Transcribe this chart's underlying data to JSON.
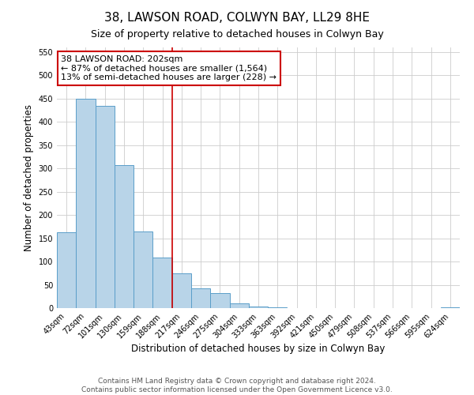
{
  "title": "38, LAWSON ROAD, COLWYN BAY, LL29 8HE",
  "subtitle": "Size of property relative to detached houses in Colwyn Bay",
  "xlabel": "Distribution of detached houses by size in Colwyn Bay",
  "ylabel": "Number of detached properties",
  "bar_labels": [
    "43sqm",
    "72sqm",
    "101sqm",
    "130sqm",
    "159sqm",
    "188sqm",
    "217sqm",
    "246sqm",
    "275sqm",
    "304sqm",
    "333sqm",
    "363sqm",
    "392sqm",
    "421sqm",
    "450sqm",
    "479sqm",
    "508sqm",
    "537sqm",
    "566sqm",
    "595sqm",
    "624sqm"
  ],
  "bar_values": [
    163,
    450,
    435,
    308,
    165,
    108,
    75,
    43,
    32,
    10,
    4,
    1,
    0,
    0,
    0,
    0,
    0,
    0,
    0,
    0,
    2
  ],
  "bar_color": "#b8d4e8",
  "bar_edge_color": "#5a9ec9",
  "vline_color": "#cc0000",
  "vline_index": 6,
  "annotation_line1": "38 LAWSON ROAD: 202sqm",
  "annotation_line2": "← 87% of detached houses are smaller (1,564)",
  "annotation_line3": "13% of semi-detached houses are larger (228) →",
  "annotation_box_color": "#cc0000",
  "ylim": [
    0,
    560
  ],
  "yticks": [
    0,
    50,
    100,
    150,
    200,
    250,
    300,
    350,
    400,
    450,
    500,
    550
  ],
  "footer1": "Contains HM Land Registry data © Crown copyright and database right 2024.",
  "footer2": "Contains public sector information licensed under the Open Government Licence v3.0.",
  "background_color": "#ffffff",
  "grid_color": "#cccccc",
  "title_fontsize": 11,
  "subtitle_fontsize": 9,
  "axis_label_fontsize": 8.5,
  "tick_fontsize": 7,
  "annotation_fontsize": 8,
  "footer_fontsize": 6.5
}
